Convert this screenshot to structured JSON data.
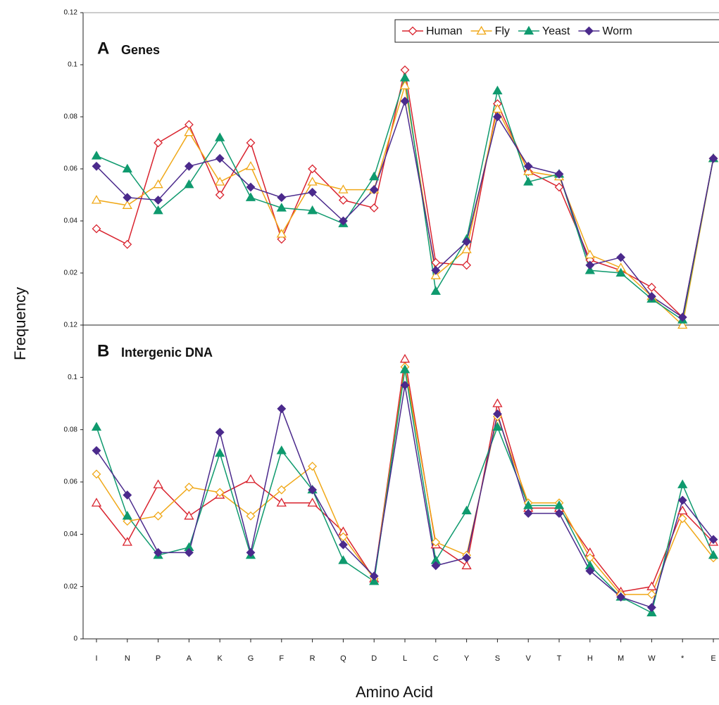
{
  "chart_data": [
    {
      "type": "line",
      "panel": "A",
      "title": "Genes",
      "ylabel": "Frequency",
      "ylim": [
        0,
        0.12
      ],
      "yticks": [
        0.02,
        0.04,
        0.06,
        0.08,
        0.1,
        0.12
      ],
      "legend": "upper right",
      "series": [
        {
          "name": "Human",
          "color": "#d9232e",
          "marker": "diamond-open",
          "values": [
            0.037,
            0.031,
            0.07,
            0.077,
            0.05,
            0.07,
            0.033,
            0.06,
            0.048,
            0.045,
            0.098,
            0.024,
            0.023,
            0.085,
            0.059,
            0.053,
            0.025,
            0.021,
            0.0145,
            0.003,
            0.064
          ]
        },
        {
          "name": "Fly",
          "color": "#f0a818",
          "marker": "triangle-open",
          "values": [
            0.048,
            0.046,
            0.054,
            0.074,
            0.055,
            0.061,
            0.035,
            0.055,
            0.052,
            0.052,
            0.092,
            0.019,
            0.029,
            0.083,
            0.059,
            0.057,
            0.027,
            0.022,
            0.011,
            0.0,
            0.064
          ]
        },
        {
          "name": "Yeast",
          "color": "#0f9a6e",
          "marker": "triangle",
          "values": [
            0.065,
            0.06,
            0.044,
            0.054,
            0.072,
            0.049,
            0.045,
            0.044,
            0.039,
            0.057,
            0.095,
            0.013,
            0.033,
            0.09,
            0.055,
            0.058,
            0.021,
            0.02,
            0.01,
            0.002,
            0.064
          ]
        },
        {
          "name": "Worm",
          "color": "#4b2a8c",
          "marker": "diamond",
          "values": [
            0.061,
            0.049,
            0.048,
            0.061,
            0.064,
            0.053,
            0.049,
            0.051,
            0.04,
            0.052,
            0.086,
            0.021,
            0.032,
            0.08,
            0.061,
            0.058,
            0.023,
            0.026,
            0.011,
            0.003,
            0.064
          ]
        }
      ]
    },
    {
      "type": "line",
      "panel": "B",
      "title": "Intergenic DNA",
      "xlabel": "Amino Acid",
      "categories": [
        "I",
        "N",
        "P",
        "A",
        "K",
        "G",
        "F",
        "R",
        "Q",
        "D",
        "L",
        "C",
        "Y",
        "S",
        "V",
        "T",
        "H",
        "M",
        "W",
        "*",
        "E"
      ],
      "ylim": [
        0,
        0.12
      ],
      "yticks": [
        0,
        0.02,
        0.04,
        0.06,
        0.08,
        0.1,
        0.12
      ],
      "series": [
        {
          "color": "#d9232e",
          "marker": "triangle-open",
          "values": [
            0.052,
            0.037,
            0.059,
            0.047,
            0.055,
            0.061,
            0.052,
            0.052,
            0.041,
            0.023,
            0.107,
            0.036,
            0.028,
            0.09,
            0.05,
            0.05,
            0.033,
            0.018,
            0.02,
            0.049,
            0.037
          ]
        },
        {
          "color": "#f0a818",
          "marker": "diamond-open",
          "values": [
            0.063,
            0.045,
            0.047,
            0.058,
            0.056,
            0.047,
            0.057,
            0.066,
            0.039,
            0.023,
            0.104,
            0.037,
            0.032,
            0.085,
            0.052,
            0.052,
            0.031,
            0.017,
            0.017,
            0.046,
            0.031
          ]
        },
        {
          "color": "#0f9a6e",
          "marker": "triangle",
          "values": [
            0.081,
            0.047,
            0.032,
            0.035,
            0.071,
            0.032,
            0.072,
            0.057,
            0.03,
            0.022,
            0.103,
            0.03,
            0.049,
            0.081,
            0.051,
            0.051,
            0.028,
            0.016,
            0.01,
            0.059,
            0.032
          ]
        },
        {
          "color": "#4b2a8c",
          "marker": "diamond",
          "values": [
            0.072,
            0.055,
            0.033,
            0.033,
            0.079,
            0.033,
            0.088,
            0.057,
            0.036,
            0.024,
            0.097,
            0.028,
            0.031,
            0.086,
            0.048,
            0.048,
            0.026,
            0.016,
            0.012,
            0.053,
            0.038
          ]
        }
      ]
    }
  ]
}
